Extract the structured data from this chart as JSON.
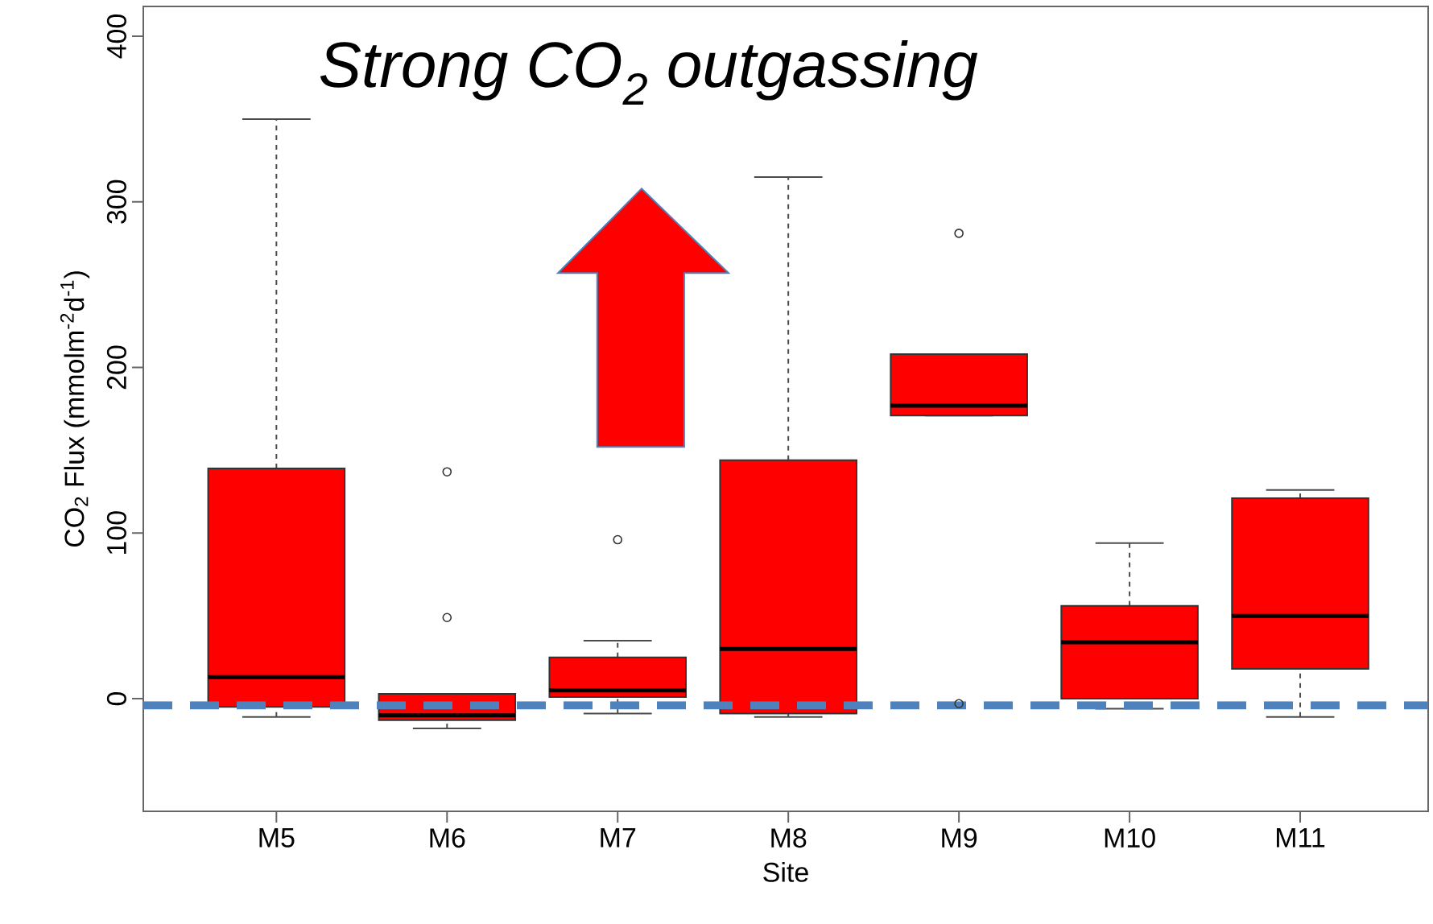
{
  "chart_data": {
    "type": "box",
    "xlabel": "Site",
    "ylabel": "CO$_{2}$ Flux (mmolm$^{-2}$d$^{-1}$)",
    "categories": [
      "M5",
      "M6",
      "M7",
      "M8",
      "M9",
      "M10",
      "M11"
    ],
    "color": "#ff0000",
    "boxes": [
      {
        "low": -11,
        "q1": -5,
        "median": 13,
        "q3": 139,
        "high": 350
      },
      {
        "low": -18,
        "q1": -13,
        "median": -10,
        "q3": 3,
        "high": 3,
        "outliers": [
          137,
          49
        ]
      },
      {
        "low": -9,
        "q1": 1,
        "median": 5,
        "q3": 25,
        "high": 35,
        "outliers": [
          96
        ]
      },
      {
        "low": -11,
        "q1": -9,
        "median": 30,
        "q3": 144,
        "high": 315
      },
      {
        "low": 171,
        "q1": 171,
        "median": 177,
        "q3": 208,
        "high": 208,
        "outliers": [
          281,
          -3
        ]
      },
      {
        "low": -6,
        "q1": 0,
        "median": 34,
        "q3": 56,
        "high": 94
      },
      {
        "low": -11,
        "q1": 18,
        "median": 50,
        "q3": 121,
        "high": 126
      }
    ],
    "ylim": [
      -68,
      418
    ],
    "yticks": [
      0,
      100,
      200,
      300,
      400
    ],
    "ref_lines": [
      {
        "axis": "y",
        "value": -4,
        "color": "#4f81bd",
        "line_style": "dashed"
      }
    ],
    "annotations": [
      "Strong CO$_{2}$ outgassing"
    ]
  }
}
